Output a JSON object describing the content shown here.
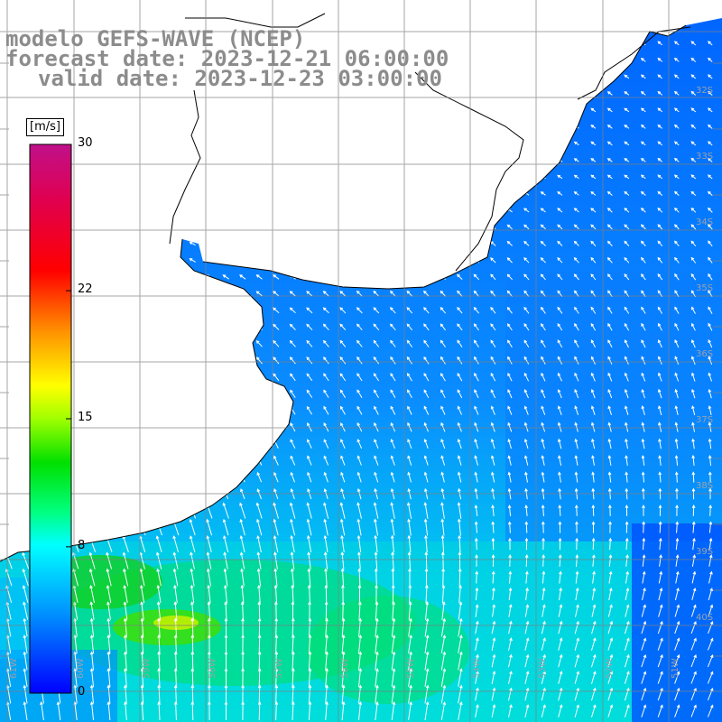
{
  "title": {
    "line1": "modelo GEFS-WAVE (NCEP)",
    "line2": "forecast date: 2023-12-21 06:00:00",
    "line3": "valid date: 2023-12-23 03:00:00"
  },
  "colorbar": {
    "unit": "[m/s]",
    "ticks": [
      "30",
      "22",
      "15",
      "8",
      "0"
    ],
    "tick_values": [
      30,
      22,
      15,
      8,
      0
    ],
    "range": [
      0,
      30
    ],
    "colors": [
      "#0000ff",
      "#00a0ff",
      "#00ffff",
      "#00ff60",
      "#00e000",
      "#c8ff00",
      "#ffff00",
      "#ff9000",
      "#ff0000",
      "#d00060",
      "#c0108a"
    ]
  },
  "map": {
    "lat_labels": [
      "32S",
      "33S",
      "34S",
      "35S",
      "36S",
      "37S",
      "38S",
      "39S",
      "40S"
    ],
    "lon_labels": [
      "61W",
      "60W",
      "59W",
      "58W",
      "57W",
      "56W",
      "55W",
      "54W",
      "53W",
      "52W",
      "51W"
    ],
    "land_color": "#ffffff",
    "grid_color": "#808080"
  }
}
